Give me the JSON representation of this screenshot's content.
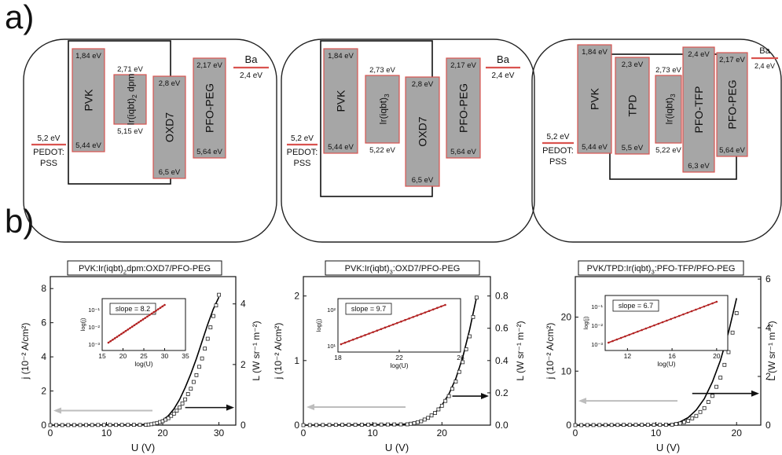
{
  "panel_a_label": "a)",
  "panel_b_label": "b)",
  "colors": {
    "band_fill": "#a6a6a6",
    "band_edge": "#d9534f",
    "level_line": "#d9534f",
    "curve": "#000000",
    "fit_line": "#b22222",
    "gray_arrow": "#bdbdbd"
  },
  "diagrams": [
    {
      "pedot": {
        "energy": "5,2 eV",
        "name_line1": "PEDOT:",
        "name_line2": "PSS"
      },
      "ba": {
        "name": "Ba",
        "energy": "2,4 eV"
      },
      "layers": [
        {
          "name": "PVK",
          "top": "1,84 eV",
          "bottom": "5,44 eV"
        },
        {
          "name": "Ir(iqbt)",
          "sub": "2",
          "suffix": "dpm",
          "top": "2,71 eV",
          "bottom": "5,15 eV"
        },
        {
          "name": "OXD7",
          "top": "2,8 eV",
          "bottom": "6,5 eV"
        },
        {
          "name": "PFO-PEG",
          "top": "2,17 eV",
          "bottom": "5,64 eV"
        }
      ]
    },
    {
      "pedot": {
        "energy": "5,2 eV",
        "name_line1": "PEDOT:",
        "name_line2": "PSS"
      },
      "ba": {
        "name": "Ba",
        "energy": "2,4 eV"
      },
      "layers": [
        {
          "name": "PVK",
          "top": "1,84 eV",
          "bottom": "5,44 eV"
        },
        {
          "name": "Ir(iqbt)",
          "sub": "3",
          "suffix": "",
          "top": "2,73 eV",
          "bottom": "5,22 eV"
        },
        {
          "name": "OXD7",
          "top": "2,8 eV",
          "bottom": "6,5 eV"
        },
        {
          "name": "PFO-PEG",
          "top": "2,17 eV",
          "bottom": "5,64 eV"
        }
      ]
    },
    {
      "pedot": {
        "energy": "5,2 eV",
        "name_line1": "PEDOT:",
        "name_line2": "PSS"
      },
      "ba": {
        "name": "Ba",
        "energy": "2,4 eV"
      },
      "layers": [
        {
          "name": "PVK",
          "top": "1,84 eV",
          "bottom": "5,44 eV"
        },
        {
          "name": "TPD",
          "top": "2,3 eV",
          "bottom": "5,5 eV"
        },
        {
          "name": "Ir(iqbt)",
          "sub": "3",
          "suffix": "",
          "top": "2,73 eV",
          "bottom": "5,22 eV"
        },
        {
          "name": "PFO-TFP",
          "top": "2,4 eV",
          "bottom": "6,3 eV"
        },
        {
          "name": "PFO-PEG",
          "top": "2,17 eV",
          "bottom": "5,64 eV"
        }
      ]
    }
  ],
  "chart_data": [
    {
      "type": "line",
      "title_parts": [
        "PVK:Ir(iqbt)",
        "2",
        "dpm:OXD7/PFO-PEG"
      ],
      "xlabel": "U (V)",
      "ylabel_left": "j (10⁻² A/cm²)",
      "ylabel_right": "L (W sr⁻¹ m⁻²)",
      "xlim": [
        0,
        33
      ],
      "ylim_left": [
        0,
        8.7
      ],
      "ylim_right": [
        0,
        4.9
      ],
      "xticks": [
        "0",
        "10",
        "20",
        "30"
      ],
      "yticks_left": [
        "0",
        "2",
        "4",
        "6",
        "8"
      ],
      "yticks_right": [
        "0",
        "2",
        "4"
      ],
      "series": [
        {
          "kind": "line",
          "axis": "left",
          "x": [
            0,
            16,
            18,
            19,
            20,
            21,
            22,
            23,
            24,
            25,
            26,
            27,
            28,
            29,
            30
          ],
          "y": [
            0,
            0.02,
            0.08,
            0.15,
            0.3,
            0.55,
            0.95,
            1.5,
            2.2,
            3.0,
            3.9,
            4.9,
            5.9,
            6.8,
            7.5
          ]
        },
        {
          "kind": "markers",
          "axis": "right",
          "x": [
            0,
            17,
            18,
            19,
            20,
            21,
            22,
            23,
            24,
            25,
            26,
            27,
            28,
            29,
            30
          ],
          "y": [
            0,
            0.01,
            0.03,
            0.07,
            0.13,
            0.23,
            0.38,
            0.58,
            0.85,
            1.2,
            1.65,
            2.2,
            2.85,
            3.6,
            4.3
          ]
        }
      ],
      "arrow_left_y": 0.85,
      "arrow_right_y": 0.58,
      "inset": {
        "label": "slope = 8.2",
        "xlabel": "log(U)",
        "ylabel": "log(j)",
        "xlim": [
          15,
          35
        ],
        "xticks": [
          "15",
          "20",
          "25",
          "30",
          "35"
        ],
        "yticks": [
          "10⁻¹",
          "10⁻²",
          "10⁻³"
        ],
        "fit": [
          [
            16.5,
            0.0007
          ],
          [
            30,
            0.08
          ]
        ]
      }
    },
    {
      "type": "line",
      "title_parts": [
        "PVK:Ir(iqbt)",
        "3",
        ":OXD7/PFO-PEG"
      ],
      "xlabel": "U (V)",
      "ylabel_left": "j (10⁻² A/cm²)",
      "ylabel_right": "L (W sr⁻¹ m⁻²)",
      "xlim": [
        0,
        27
      ],
      "ylim_left": [
        0,
        2.3
      ],
      "ylim_right": [
        0,
        0.92
      ],
      "xticks": [
        "0",
        "10",
        "20"
      ],
      "yticks_left": [
        "0",
        "1",
        "2"
      ],
      "yticks_right": [
        "0.0",
        "0.2",
        "0.4",
        "0.6",
        "0.8"
      ],
      "series": [
        {
          "kind": "line",
          "axis": "left",
          "x": [
            0,
            14,
            16,
            17,
            18,
            19,
            20,
            21,
            22,
            23,
            24,
            25
          ],
          "y": [
            0,
            0.01,
            0.03,
            0.06,
            0.11,
            0.19,
            0.31,
            0.48,
            0.72,
            1.05,
            1.48,
            1.98
          ]
        },
        {
          "kind": "markers",
          "axis": "right",
          "x": [
            0,
            15,
            16,
            17,
            18,
            19,
            20,
            21,
            22,
            23,
            24,
            25
          ],
          "y": [
            0,
            0.005,
            0.012,
            0.024,
            0.045,
            0.075,
            0.12,
            0.18,
            0.27,
            0.39,
            0.55,
            0.79
          ]
        }
      ],
      "arrow_left_y": 0.28,
      "arrow_right_y": 0.18,
      "inset": {
        "label": "slope = 9.7",
        "xlabel": "log(U)",
        "ylabel": "log(j)",
        "xlim": [
          18,
          26
        ],
        "xticks": [
          "18",
          "22",
          "26"
        ],
        "yticks": [
          "10²",
          "10¹"
        ],
        "fit": [
          [
            18.2,
            12
          ],
          [
            25,
            170
          ]
        ]
      }
    },
    {
      "type": "line",
      "title_parts": [
        "PVK/TPD:Ir(iqbt)",
        "3",
        ":PFO-TFP/PFO-PEG"
      ],
      "xlabel": "U (V)",
      "ylabel_left": "j (10⁻² A/cm²)",
      "ylabel_right": "L (W sr⁻¹ m⁻²)",
      "xlim": [
        0,
        23
      ],
      "ylim_left": [
        0,
        27.5
      ],
      "ylim_right": [
        0,
        6.1
      ],
      "xticks": [
        "0",
        "10",
        "20"
      ],
      "yticks_left": [
        "0",
        "10",
        "20"
      ],
      "yticks_right": [
        "0",
        "2",
        "4",
        "6"
      ],
      "series": [
        {
          "kind": "line",
          "axis": "left",
          "x": [
            0,
            11,
            12,
            13,
            14,
            15,
            16,
            17,
            18,
            19,
            20
          ],
          "y": [
            0,
            0.05,
            0.2,
            0.6,
            1.4,
            2.8,
            4.9,
            8.0,
            12.0,
            17.2,
            23.5
          ]
        },
        {
          "kind": "markers",
          "axis": "right",
          "x": [
            0,
            12,
            13,
            14,
            15,
            16,
            17,
            18,
            19,
            20
          ],
          "y": [
            0,
            0.02,
            0.07,
            0.18,
            0.38,
            0.7,
            1.2,
            1.95,
            3.0,
            4.6
          ]
        }
      ],
      "arrow_left_y": 4.5,
      "arrow_right_y": 1.3,
      "inset": {
        "label": "slope = 6.7",
        "xlabel": "log(U)",
        "ylabel": "log(j)",
        "xlim": [
          10,
          21
        ],
        "xticks": [
          "12",
          "16",
          "20"
        ],
        "yticks": [
          "10⁻¹",
          "10⁻²",
          "10⁻³"
        ],
        "fit": [
          [
            10.3,
            0.0022
          ],
          [
            20,
            0.1
          ]
        ]
      }
    }
  ]
}
